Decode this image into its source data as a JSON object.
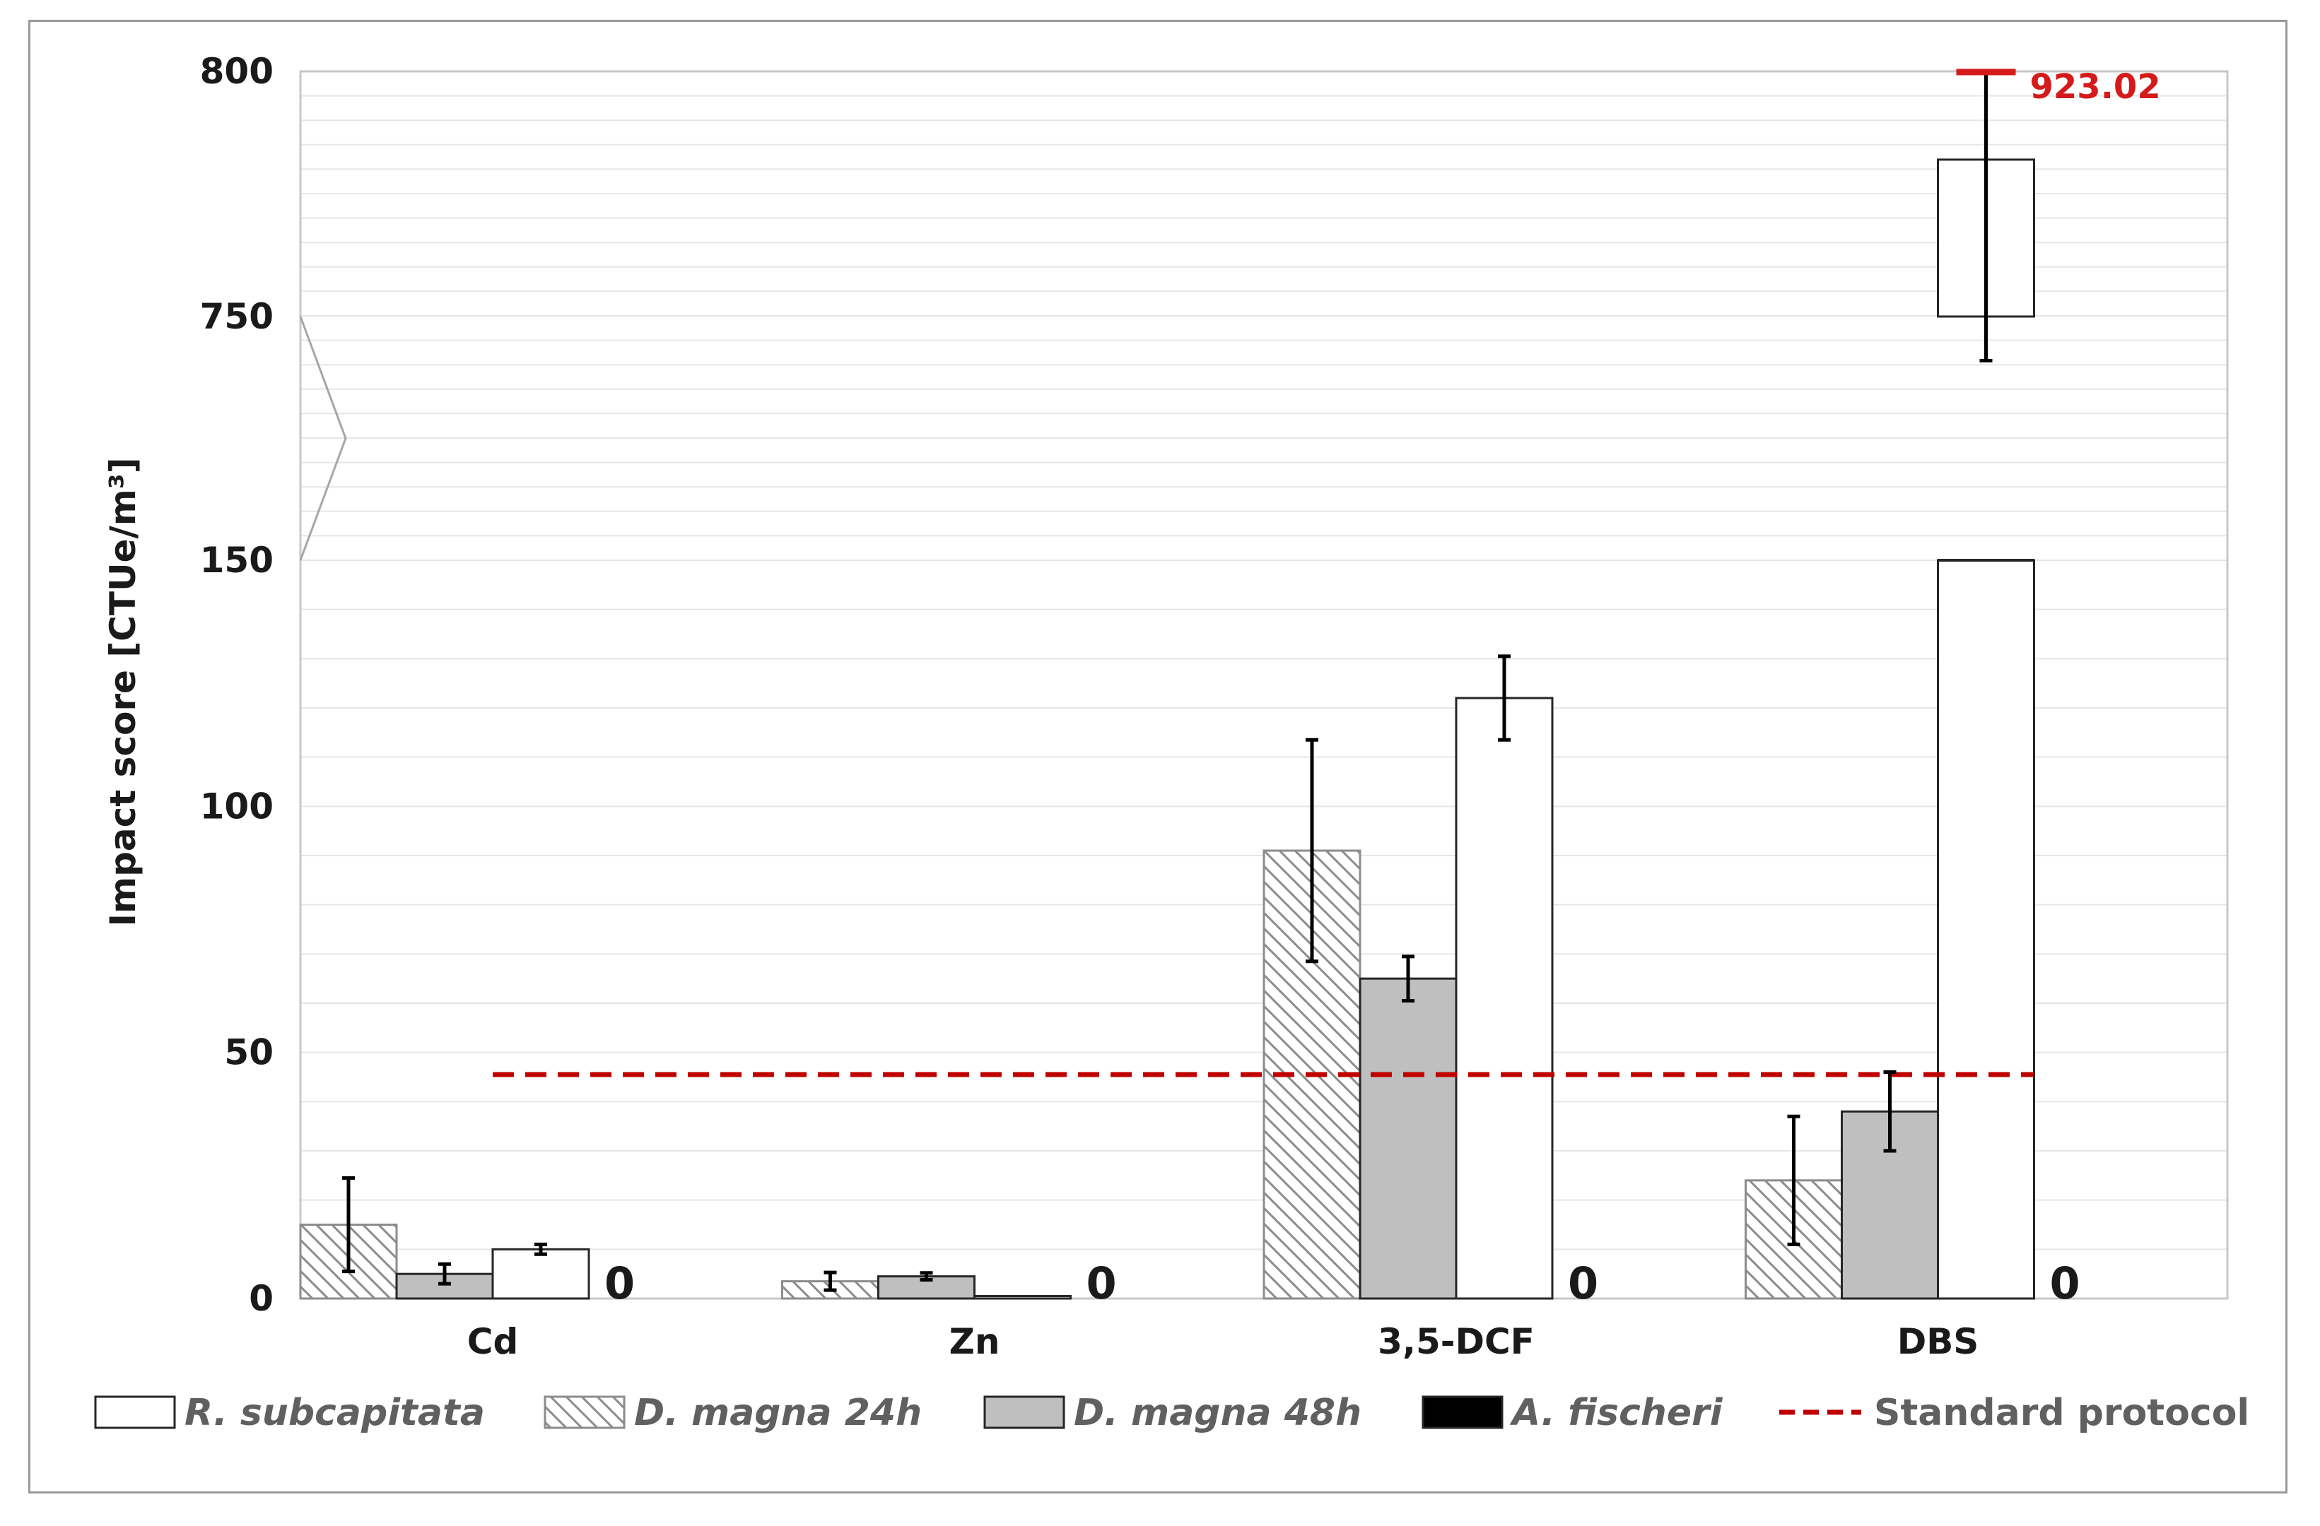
{
  "chart_data": {
    "type": "bar",
    "ylabel": "Impact score [CTUe/m³]",
    "ylim": [
      0,
      800
    ],
    "axis_break": {
      "lower_segment": [
        0,
        150
      ],
      "upper_segment": [
        150,
        800
      ]
    },
    "yticks": [
      "0",
      "50",
      "100",
      "150",
      "750",
      "800"
    ],
    "categories": [
      "Cd",
      "Zn",
      "3,5-DCF",
      "DBS"
    ],
    "series": [
      {
        "name": "D. magna 24h",
        "style": "hatched",
        "values": [
          15,
          3.5,
          91,
          24
        ],
        "errors": [
          9.5,
          1.8,
          22.5,
          13
        ]
      },
      {
        "name": "D. magna 48h",
        "style": "gray",
        "values": [
          5,
          4.5,
          65,
          38
        ],
        "errors": [
          2,
          0.7,
          4.5,
          8
        ]
      },
      {
        "name": "R. subcapitata",
        "style": "white",
        "values": [
          10,
          0.5,
          122,
          782
        ],
        "errors": [
          1,
          0,
          8.5,
          41
        ]
      },
      {
        "name": "A. fischeri",
        "style": "black",
        "values": [
          0,
          0,
          0,
          0
        ],
        "errors": [
          0,
          0,
          0,
          0
        ]
      }
    ],
    "zero_labels": [
      "0",
      "0",
      "0",
      "0"
    ],
    "standard_protocol": {
      "name": "Standard protocol",
      "value": 45.5,
      "color": "#c00000"
    },
    "outlier": {
      "label": "923.02",
      "color": "#d41a1a"
    },
    "legend": {
      "placement": "bottom",
      "items": [
        {
          "key": "r",
          "label": "R. subcapitata",
          "style": "white"
        },
        {
          "key": "d24",
          "label": "D. magna 24h",
          "style": "hatched"
        },
        {
          "key": "d48",
          "label": "D. magna 48h",
          "style": "gray"
        },
        {
          "key": "af",
          "label": "A. fischeri",
          "style": "black"
        },
        {
          "key": "sp",
          "label": "Standard protocol",
          "style": "dashed-line"
        }
      ]
    },
    "colors": {
      "gray_fill": "#bfbfbf",
      "hatch_stroke": "#8c8c8c",
      "bar_stroke": "#262626",
      "grid": "#e6e6e6"
    }
  }
}
